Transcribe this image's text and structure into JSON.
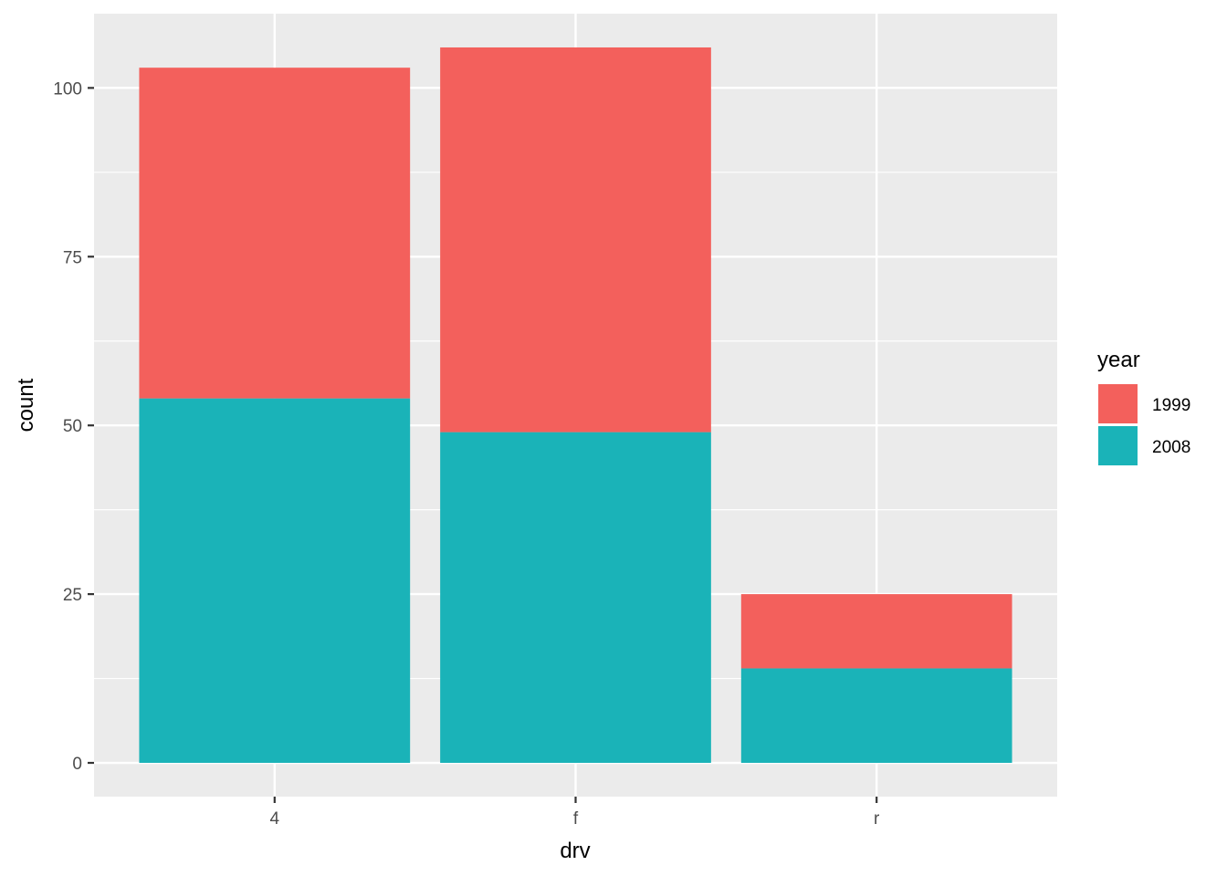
{
  "chart_data": {
    "type": "bar",
    "stacked": true,
    "categories": [
      "4",
      "f",
      "r"
    ],
    "series": [
      {
        "name": "2008",
        "color": "#1AB3B8",
        "values": [
          54,
          49,
          14
        ]
      },
      {
        "name": "1999",
        "color": "#F3605C",
        "values": [
          49,
          57,
          11
        ]
      }
    ],
    "xlabel": "drv",
    "ylabel": "count",
    "ylim": [
      -5,
      111
    ],
    "yticks": [
      0,
      25,
      50,
      75,
      100
    ],
    "grid": true,
    "legend": {
      "title": "year",
      "placement": "right",
      "entries": [
        {
          "label": "1999",
          "color": "#F3605C"
        },
        {
          "label": "2008",
          "color": "#1AB3B8"
        }
      ]
    }
  }
}
